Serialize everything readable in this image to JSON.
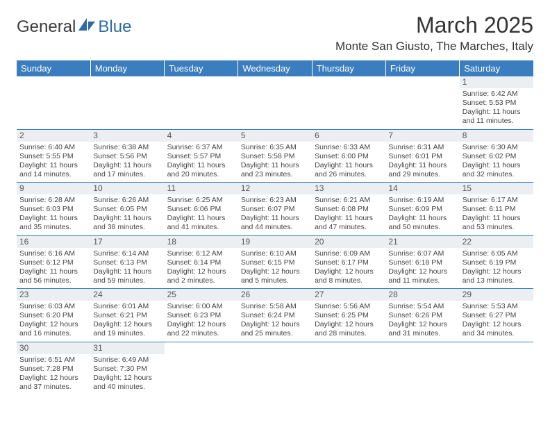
{
  "logo": {
    "part1": "General",
    "part2": "Blue"
  },
  "title": "March 2025",
  "location": "Monte San Giusto, The Marches, Italy",
  "colors": {
    "header_bg": "#3a7ebf",
    "header_text": "#ffffff",
    "daynum_bg": "#eceff1",
    "border": "#3a7ebf",
    "logo_blue": "#2c6aa8"
  },
  "daysOfWeek": [
    "Sunday",
    "Monday",
    "Tuesday",
    "Wednesday",
    "Thursday",
    "Friday",
    "Saturday"
  ],
  "weeks": [
    [
      {
        "day": "",
        "sunrise": "",
        "sunset": "",
        "daylight1": "",
        "daylight2": ""
      },
      {
        "day": "",
        "sunrise": "",
        "sunset": "",
        "daylight1": "",
        "daylight2": ""
      },
      {
        "day": "",
        "sunrise": "",
        "sunset": "",
        "daylight1": "",
        "daylight2": ""
      },
      {
        "day": "",
        "sunrise": "",
        "sunset": "",
        "daylight1": "",
        "daylight2": ""
      },
      {
        "day": "",
        "sunrise": "",
        "sunset": "",
        "daylight1": "",
        "daylight2": ""
      },
      {
        "day": "",
        "sunrise": "",
        "sunset": "",
        "daylight1": "",
        "daylight2": ""
      },
      {
        "day": "1",
        "sunrise": "Sunrise: 6:42 AM",
        "sunset": "Sunset: 5:53 PM",
        "daylight1": "Daylight: 11 hours",
        "daylight2": "and 11 minutes."
      }
    ],
    [
      {
        "day": "2",
        "sunrise": "Sunrise: 6:40 AM",
        "sunset": "Sunset: 5:55 PM",
        "daylight1": "Daylight: 11 hours",
        "daylight2": "and 14 minutes."
      },
      {
        "day": "3",
        "sunrise": "Sunrise: 6:38 AM",
        "sunset": "Sunset: 5:56 PM",
        "daylight1": "Daylight: 11 hours",
        "daylight2": "and 17 minutes."
      },
      {
        "day": "4",
        "sunrise": "Sunrise: 6:37 AM",
        "sunset": "Sunset: 5:57 PM",
        "daylight1": "Daylight: 11 hours",
        "daylight2": "and 20 minutes."
      },
      {
        "day": "5",
        "sunrise": "Sunrise: 6:35 AM",
        "sunset": "Sunset: 5:58 PM",
        "daylight1": "Daylight: 11 hours",
        "daylight2": "and 23 minutes."
      },
      {
        "day": "6",
        "sunrise": "Sunrise: 6:33 AM",
        "sunset": "Sunset: 6:00 PM",
        "daylight1": "Daylight: 11 hours",
        "daylight2": "and 26 minutes."
      },
      {
        "day": "7",
        "sunrise": "Sunrise: 6:31 AM",
        "sunset": "Sunset: 6:01 PM",
        "daylight1": "Daylight: 11 hours",
        "daylight2": "and 29 minutes."
      },
      {
        "day": "8",
        "sunrise": "Sunrise: 6:30 AM",
        "sunset": "Sunset: 6:02 PM",
        "daylight1": "Daylight: 11 hours",
        "daylight2": "and 32 minutes."
      }
    ],
    [
      {
        "day": "9",
        "sunrise": "Sunrise: 6:28 AM",
        "sunset": "Sunset: 6:03 PM",
        "daylight1": "Daylight: 11 hours",
        "daylight2": "and 35 minutes."
      },
      {
        "day": "10",
        "sunrise": "Sunrise: 6:26 AM",
        "sunset": "Sunset: 6:05 PM",
        "daylight1": "Daylight: 11 hours",
        "daylight2": "and 38 minutes."
      },
      {
        "day": "11",
        "sunrise": "Sunrise: 6:25 AM",
        "sunset": "Sunset: 6:06 PM",
        "daylight1": "Daylight: 11 hours",
        "daylight2": "and 41 minutes."
      },
      {
        "day": "12",
        "sunrise": "Sunrise: 6:23 AM",
        "sunset": "Sunset: 6:07 PM",
        "daylight1": "Daylight: 11 hours",
        "daylight2": "and 44 minutes."
      },
      {
        "day": "13",
        "sunrise": "Sunrise: 6:21 AM",
        "sunset": "Sunset: 6:08 PM",
        "daylight1": "Daylight: 11 hours",
        "daylight2": "and 47 minutes."
      },
      {
        "day": "14",
        "sunrise": "Sunrise: 6:19 AM",
        "sunset": "Sunset: 6:09 PM",
        "daylight1": "Daylight: 11 hours",
        "daylight2": "and 50 minutes."
      },
      {
        "day": "15",
        "sunrise": "Sunrise: 6:17 AM",
        "sunset": "Sunset: 6:11 PM",
        "daylight1": "Daylight: 11 hours",
        "daylight2": "and 53 minutes."
      }
    ],
    [
      {
        "day": "16",
        "sunrise": "Sunrise: 6:16 AM",
        "sunset": "Sunset: 6:12 PM",
        "daylight1": "Daylight: 11 hours",
        "daylight2": "and 56 minutes."
      },
      {
        "day": "17",
        "sunrise": "Sunrise: 6:14 AM",
        "sunset": "Sunset: 6:13 PM",
        "daylight1": "Daylight: 11 hours",
        "daylight2": "and 59 minutes."
      },
      {
        "day": "18",
        "sunrise": "Sunrise: 6:12 AM",
        "sunset": "Sunset: 6:14 PM",
        "daylight1": "Daylight: 12 hours",
        "daylight2": "and 2 minutes."
      },
      {
        "day": "19",
        "sunrise": "Sunrise: 6:10 AM",
        "sunset": "Sunset: 6:15 PM",
        "daylight1": "Daylight: 12 hours",
        "daylight2": "and 5 minutes."
      },
      {
        "day": "20",
        "sunrise": "Sunrise: 6:09 AM",
        "sunset": "Sunset: 6:17 PM",
        "daylight1": "Daylight: 12 hours",
        "daylight2": "and 8 minutes."
      },
      {
        "day": "21",
        "sunrise": "Sunrise: 6:07 AM",
        "sunset": "Sunset: 6:18 PM",
        "daylight1": "Daylight: 12 hours",
        "daylight2": "and 11 minutes."
      },
      {
        "day": "22",
        "sunrise": "Sunrise: 6:05 AM",
        "sunset": "Sunset: 6:19 PM",
        "daylight1": "Daylight: 12 hours",
        "daylight2": "and 13 minutes."
      }
    ],
    [
      {
        "day": "23",
        "sunrise": "Sunrise: 6:03 AM",
        "sunset": "Sunset: 6:20 PM",
        "daylight1": "Daylight: 12 hours",
        "daylight2": "and 16 minutes."
      },
      {
        "day": "24",
        "sunrise": "Sunrise: 6:01 AM",
        "sunset": "Sunset: 6:21 PM",
        "daylight1": "Daylight: 12 hours",
        "daylight2": "and 19 minutes."
      },
      {
        "day": "25",
        "sunrise": "Sunrise: 6:00 AM",
        "sunset": "Sunset: 6:23 PM",
        "daylight1": "Daylight: 12 hours",
        "daylight2": "and 22 minutes."
      },
      {
        "day": "26",
        "sunrise": "Sunrise: 5:58 AM",
        "sunset": "Sunset: 6:24 PM",
        "daylight1": "Daylight: 12 hours",
        "daylight2": "and 25 minutes."
      },
      {
        "day": "27",
        "sunrise": "Sunrise: 5:56 AM",
        "sunset": "Sunset: 6:25 PM",
        "daylight1": "Daylight: 12 hours",
        "daylight2": "and 28 minutes."
      },
      {
        "day": "28",
        "sunrise": "Sunrise: 5:54 AM",
        "sunset": "Sunset: 6:26 PM",
        "daylight1": "Daylight: 12 hours",
        "daylight2": "and 31 minutes."
      },
      {
        "day": "29",
        "sunrise": "Sunrise: 5:53 AM",
        "sunset": "Sunset: 6:27 PM",
        "daylight1": "Daylight: 12 hours",
        "daylight2": "and 34 minutes."
      }
    ],
    [
      {
        "day": "30",
        "sunrise": "Sunrise: 6:51 AM",
        "sunset": "Sunset: 7:28 PM",
        "daylight1": "Daylight: 12 hours",
        "daylight2": "and 37 minutes."
      },
      {
        "day": "31",
        "sunrise": "Sunrise: 6:49 AM",
        "sunset": "Sunset: 7:30 PM",
        "daylight1": "Daylight: 12 hours",
        "daylight2": "and 40 minutes."
      },
      {
        "day": "",
        "sunrise": "",
        "sunset": "",
        "daylight1": "",
        "daylight2": ""
      },
      {
        "day": "",
        "sunrise": "",
        "sunset": "",
        "daylight1": "",
        "daylight2": ""
      },
      {
        "day": "",
        "sunrise": "",
        "sunset": "",
        "daylight1": "",
        "daylight2": ""
      },
      {
        "day": "",
        "sunrise": "",
        "sunset": "",
        "daylight1": "",
        "daylight2": ""
      },
      {
        "day": "",
        "sunrise": "",
        "sunset": "",
        "daylight1": "",
        "daylight2": ""
      }
    ]
  ]
}
